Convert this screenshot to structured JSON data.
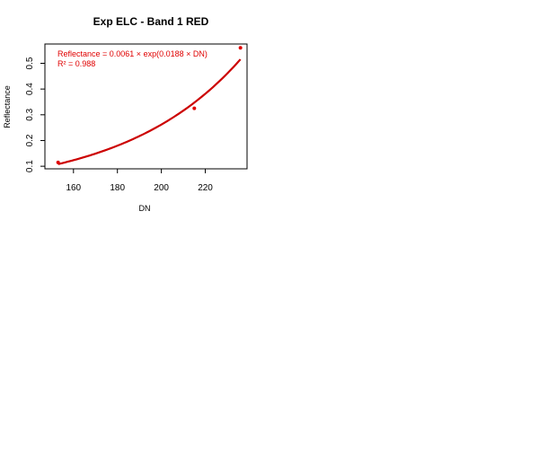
{
  "chart_data": {
    "type": "scatter",
    "title": "Exp ELC - Band 1 RED",
    "xlabel": "DN",
    "ylabel": "Reflectance",
    "xlim": [
      147,
      239
    ],
    "ylim": [
      0.09,
      0.575
    ],
    "x_ticks": [
      160,
      180,
      200,
      220
    ],
    "y_ticks": [
      0.1,
      0.2,
      0.3,
      0.4,
      0.5
    ],
    "grid": false,
    "annotations": [
      "Reflectance = 0.0061 × exp(0.0188 × DN)",
      "R² = 0.988"
    ],
    "fit": {
      "model": "exponential",
      "a": 0.0061,
      "b": 0.0188,
      "x_range": [
        153,
        236
      ]
    },
    "points": [
      {
        "x": 153,
        "y": 0.115
      },
      {
        "x": 215,
        "y": 0.325
      },
      {
        "x": 236,
        "y": 0.56
      }
    ],
    "colors": {
      "points": "#e00000",
      "fit_line": "#cc0000",
      "annotation": "#e00000"
    }
  }
}
